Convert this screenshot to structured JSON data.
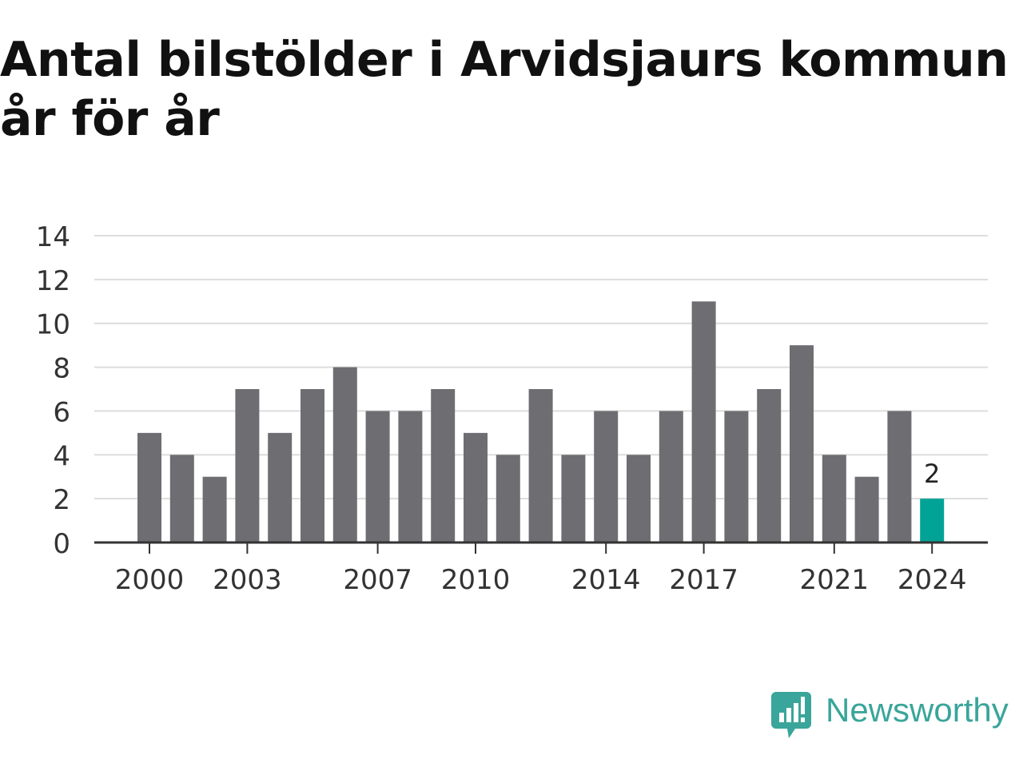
{
  "title_lines": [
    "Antal bilstölder i Arvidsjaurs kommun",
    "år för år"
  ],
  "colors": {
    "bar": "#6e6d72",
    "highlight": "#00a396",
    "grid": "#dddddd",
    "axis": "#333333",
    "text": "#333333",
    "brand": "#3aa59a"
  },
  "logo": {
    "text": "Newsworthy",
    "icon": "newsworthy-logo-icon"
  },
  "chart_data": {
    "type": "bar",
    "title": "Antal bilstölder i Arvidsjaurs kommun år för år",
    "xlabel": "",
    "ylabel": "",
    "categories": [
      "2000",
      "2001",
      "2002",
      "2003",
      "2004",
      "2005",
      "2006",
      "2007",
      "2008",
      "2009",
      "2010",
      "2011",
      "2012",
      "2013",
      "2014",
      "2015",
      "2016",
      "2017",
      "2018",
      "2019",
      "2020",
      "2021",
      "2022",
      "2023",
      "2024"
    ],
    "values": [
      5,
      4,
      3,
      7,
      5,
      7,
      8,
      6,
      6,
      7,
      5,
      4,
      7,
      4,
      6,
      4,
      6,
      11,
      6,
      7,
      9,
      4,
      3,
      6,
      2
    ],
    "x_tick_labels": [
      "2000",
      "2003",
      "2007",
      "2010",
      "2014",
      "2017",
      "2021",
      "2024"
    ],
    "y_ticks": [
      0,
      2,
      4,
      6,
      8,
      10,
      12,
      14
    ],
    "ylim": [
      0,
      14
    ],
    "grid": true,
    "highlight": {
      "category": "2024",
      "label": "2"
    }
  }
}
